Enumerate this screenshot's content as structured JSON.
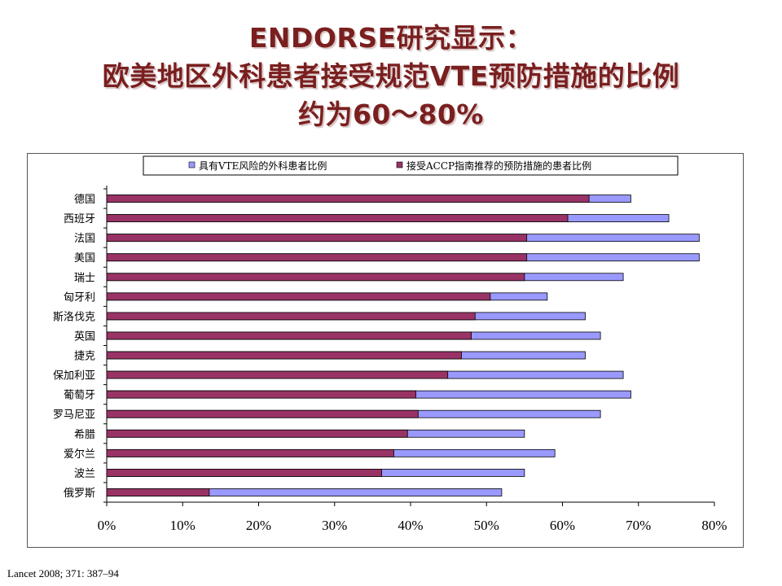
{
  "slide": {
    "title_line1": "ENDORSE研究显示：",
    "title_line2": "欧美地区外科患者接受规范VTE预防措施的比例",
    "title_line3": "约为60～80%",
    "footer": "Lancet 2008; 371: 387–94"
  },
  "colors": {
    "title": "#7a1f1f",
    "series_risk": "#9999ff",
    "series_prophylaxis": "#993366"
  },
  "chart_data": {
    "type": "bar",
    "orientation": "horizontal",
    "stacking": "overlay",
    "categories": [
      "德国",
      "西班牙",
      "法国",
      "美国",
      "瑞士",
      "匈牙利",
      "斯洛伐克",
      "英国",
      "捷克",
      "保加利亚",
      "葡萄牙",
      "罗马尼亚",
      "希腊",
      "爱尔兰",
      "波兰",
      "俄罗斯"
    ],
    "series": [
      {
        "name": "具有VTE风险的外科患者比例",
        "color": "#9999ff",
        "values": [
          69,
          74,
          78,
          78,
          68,
          58,
          63,
          65,
          63,
          68,
          69,
          65,
          55,
          59,
          55,
          52
        ]
      },
      {
        "name": "接受ACCP指南推荐的预防措施的患者比例",
        "color": "#993366",
        "values": [
          63.5,
          60.7,
          55.3,
          55.3,
          55.0,
          50.5,
          48.5,
          48.0,
          46.7,
          44.9,
          40.7,
          41.0,
          39.6,
          37.8,
          36.2,
          13.5
        ]
      }
    ],
    "xlim": [
      0,
      80
    ],
    "xticks": [
      "0%",
      "10%",
      "20%",
      "30%",
      "40%",
      "50%",
      "60%",
      "70%",
      "80%"
    ],
    "xtick_values": [
      0,
      10,
      20,
      30,
      40,
      50,
      60,
      70,
      80
    ],
    "legend_position": "top",
    "grid": false
  }
}
